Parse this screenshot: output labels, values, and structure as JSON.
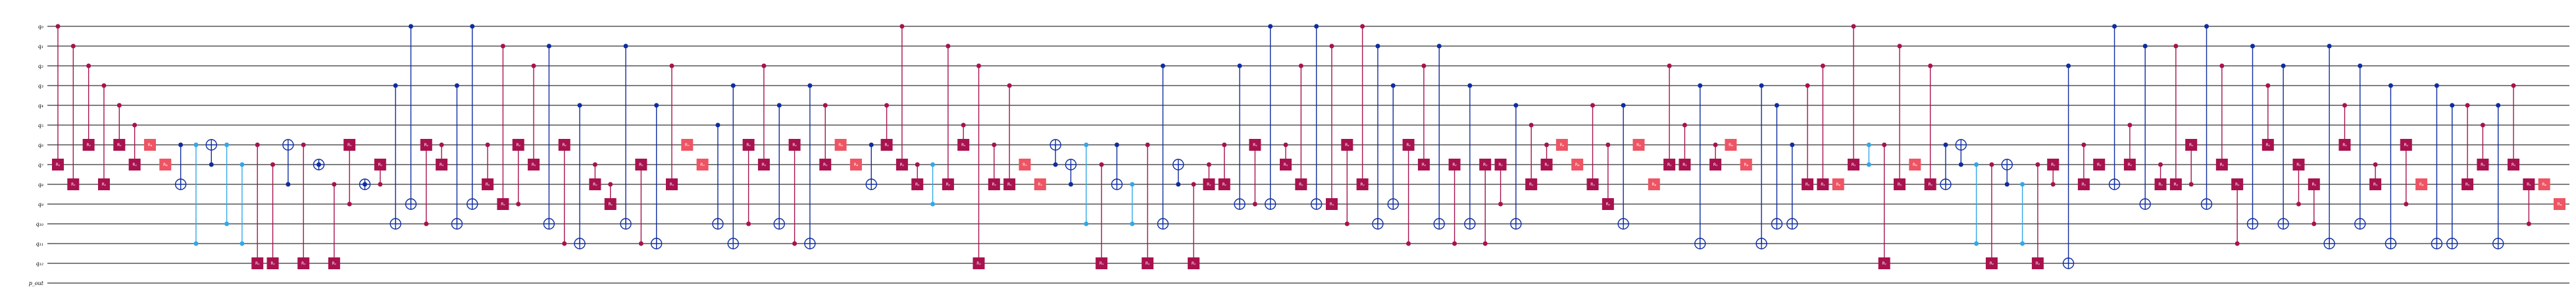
{
  "circuit": {
    "wires": [
      "q₀",
      "q₁",
      "q₂",
      "q₃",
      "q₄",
      "q₅",
      "q₆",
      "q₇",
      "q₈",
      "q₉",
      "q₁₀",
      "q₁₁",
      "q₁₂",
      "p_out"
    ],
    "gate_labels": {
      "ry": "Rᵧ",
      "rx": "Rₓ",
      "rz": "Rᵩ",
      "cry": "Rᵧ"
    },
    "colors": {
      "controlled_rotation": "#A8124E",
      "single_rotation": "#EE5464",
      "cnot": "#0F2CA0",
      "cz": "#31A8E8",
      "wire": "#000000"
    },
    "operations": [
      {
        "t": "cry",
        "c": 0,
        "g": 7
      },
      {
        "t": "cry",
        "c": 1,
        "g": 8
      },
      {
        "t": "cry",
        "c": 2,
        "g": 6
      },
      {
        "t": "cry",
        "c": 3,
        "g": 8
      },
      {
        "t": "cry",
        "c": 4,
        "g": 6
      },
      {
        "t": "cry",
        "c": 5,
        "g": 7
      },
      {
        "t": "rz",
        "g": 6
      },
      {
        "t": "rz",
        "g": 7
      },
      {
        "t": "cx",
        "c": 6,
        "g": 8
      },
      {
        "t": "cz",
        "a": 6,
        "b": 11
      },
      {
        "t": "cx",
        "c": 7,
        "g": 6
      },
      {
        "t": "cz",
        "a": 6,
        "b": 10
      },
      {
        "t": "cz",
        "a": 7,
        "b": 11
      },
      {
        "t": "cry",
        "c": 6,
        "g": 12
      },
      {
        "t": "cry",
        "c": 7,
        "g": 12
      },
      {
        "t": "cx",
        "c": 8,
        "g": 6
      },
      {
        "t": "cry",
        "c": 6,
        "g": 12
      },
      {
        "t": "cx",
        "c": 7,
        "g": 7
      },
      {
        "t": "cry",
        "c": 8,
        "g": 12
      },
      {
        "t": "cry",
        "c": 9,
        "g": 6
      },
      {
        "t": "cx",
        "c": 8,
        "g": 8
      },
      {
        "t": "cry",
        "c": 8,
        "g": 7
      },
      {
        "t": "cx",
        "c": 3,
        "g": 10
      },
      {
        "t": "cx",
        "c": 0,
        "g": 9
      },
      {
        "t": "cry",
        "c": 10,
        "g": 6
      },
      {
        "t": "cry",
        "c": 6,
        "g": 7
      },
      {
        "t": "cx",
        "c": 3,
        "g": 10
      },
      {
        "t": "cx",
        "c": 0,
        "g": 9
      },
      {
        "t": "cry",
        "c": 6,
        "g": 8
      },
      {
        "t": "cry",
        "c": 1,
        "g": 9
      },
      {
        "t": "cry",
        "c": 9,
        "g": 6
      },
      {
        "t": "cry",
        "c": 2,
        "g": 7
      },
      {
        "t": "cx",
        "c": 1,
        "g": 10
      },
      {
        "t": "cry",
        "c": 11,
        "g": 6
      },
      {
        "t": "cx",
        "c": 4,
        "g": 11
      },
      {
        "t": "cry",
        "c": 7,
        "g": 8
      },
      {
        "t": "cry",
        "c": 8,
        "g": 9
      },
      {
        "t": "cx",
        "c": 1,
        "g": 10
      },
      {
        "t": "cry",
        "c": 11,
        "g": 7
      },
      {
        "t": "cx",
        "c": 4,
        "g": 11
      },
      {
        "t": "cry",
        "c": 2,
        "g": 8
      },
      {
        "t": "rx",
        "g": 6
      },
      {
        "t": "rx",
        "g": 7
      },
      {
        "t": "cx",
        "c": 5,
        "g": 10
      },
      {
        "t": "cx",
        "c": 3,
        "g": 11
      },
      {
        "t": "cry",
        "c": 10,
        "g": 6
      },
      {
        "t": "cry",
        "c": 2,
        "g": 7
      },
      {
        "t": "cx",
        "c": 4,
        "g": 10
      },
      {
        "t": "cry",
        "c": 11,
        "g": 6
      },
      {
        "t": "cx",
        "c": 3,
        "g": 11
      },
      {
        "t": "cry",
        "c": 4,
        "g": 7
      },
      {
        "t": "rz",
        "g": 6
      },
      {
        "t": "rz",
        "g": 7
      },
      {
        "t": "cx",
        "c": 6,
        "g": 8
      },
      {
        "t": "cry",
        "c": 4,
        "g": 6
      },
      {
        "t": "cry",
        "c": 0,
        "g": 7
      },
      {
        "t": "cry",
        "c": 7,
        "g": 8
      },
      {
        "t": "cz",
        "a": 7,
        "b": 9
      },
      {
        "t": "cry",
        "c": 1,
        "g": 8
      },
      {
        "t": "cry",
        "c": 5,
        "g": 6
      },
      {
        "t": "cry",
        "c": 2,
        "g": 12
      },
      {
        "t": "cry",
        "c": 6,
        "g": 8
      },
      {
        "t": "cry",
        "c": 3,
        "g": 8
      },
      {
        "t": "rx",
        "g": 7
      },
      {
        "t": "rx",
        "g": 8
      },
      {
        "t": "cx",
        "c": 7,
        "g": 6
      },
      {
        "t": "cx",
        "c": 8,
        "g": 7
      },
      {
        "t": "cz",
        "a": 6,
        "b": 10
      },
      {
        "t": "cry",
        "c": 7,
        "g": 12
      },
      {
        "t": "cx",
        "c": 6,
        "g": 8
      },
      {
        "t": "cz",
        "a": 8,
        "b": 10
      },
      {
        "t": "cry",
        "c": 6,
        "g": 12
      },
      {
        "t": "cx",
        "c": 2,
        "g": 10
      },
      {
        "t": "cx",
        "c": 8,
        "g": 7
      },
      {
        "t": "cry",
        "c": 8,
        "g": 12
      },
      {
        "t": "cry",
        "c": 7,
        "g": 8
      },
      {
        "t": "cry",
        "c": 6,
        "g": 8
      },
      {
        "t": "cx",
        "c": 2,
        "g": 9
      },
      {
        "t": "cry",
        "c": 9,
        "g": 6
      },
      {
        "t": "cx",
        "c": 0,
        "g": 9
      },
      {
        "t": "cry",
        "c": 6,
        "g": 7
      },
      {
        "t": "cry",
        "c": 2,
        "g": 8
      },
      {
        "t": "cx",
        "c": 0,
        "g": 9
      },
      {
        "t": "cry",
        "c": 1,
        "g": 9
      },
      {
        "t": "cry",
        "c": 10,
        "g": 6
      },
      {
        "t": "cry",
        "c": 0,
        "g": 8
      },
      {
        "t": "cx",
        "c": 1,
        "g": 10
      },
      {
        "t": "cx",
        "c": 3,
        "g": 9
      },
      {
        "t": "cry",
        "c": 11,
        "g": 6
      },
      {
        "t": "cry",
        "c": 2,
        "g": 7
      },
      {
        "t": "cx",
        "c": 1,
        "g": 10
      },
      {
        "t": "cry",
        "c": 11,
        "g": 7
      },
      {
        "t": "cx",
        "c": 3,
        "g": 10
      },
      {
        "t": "cry",
        "c": 11,
        "g": 7
      },
      {
        "t": "cry",
        "c": 9,
        "g": 7
      },
      {
        "t": "cx",
        "c": 4,
        "g": 10
      },
      {
        "t": "cry",
        "c": 5,
        "g": 8
      },
      {
        "t": "cry",
        "c": 6,
        "g": 7
      },
      {
        "t": "rz",
        "g": 6
      },
      {
        "t": "rz",
        "g": 7
      },
      {
        "t": "cry",
        "c": 4,
        "g": 8
      },
      {
        "t": "cry",
        "c": 6,
        "g": 9
      },
      {
        "t": "cx",
        "c": 4,
        "g": 10
      },
      {
        "t": "rz",
        "g": 6
      },
      {
        "t": "rz",
        "g": 8
      },
      {
        "t": "cry",
        "c": 2,
        "g": 7
      },
      {
        "t": "cry",
        "c": 5,
        "g": 7
      },
      {
        "t": "cx",
        "c": 3,
        "g": 11
      },
      {
        "t": "cry",
        "c": 6,
        "g": 7
      },
      {
        "t": "rz",
        "g": 6
      },
      {
        "t": "rz",
        "g": 7
      },
      {
        "t": "cx",
        "c": 3,
        "g": 11
      },
      {
        "t": "cx",
        "c": 4,
        "g": 10
      },
      {
        "t": "cx",
        "c": 6,
        "g": 10
      },
      {
        "t": "cry",
        "c": 3,
        "g": 8
      },
      {
        "t": "cry",
        "c": 2,
        "g": 8
      },
      {
        "t": "rz",
        "g": 8
      },
      {
        "t": "cry",
        "c": 0,
        "g": 7
      },
      {
        "t": "cz",
        "a": 6,
        "b": 7
      },
      {
        "t": "cry",
        "c": 6,
        "g": 12
      },
      {
        "t": "cry",
        "c": 1,
        "g": 8
      },
      {
        "t": "rz",
        "g": 7
      },
      {
        "t": "cry",
        "c": 2,
        "g": 8
      },
      {
        "t": "cx",
        "c": 6,
        "g": 8
      },
      {
        "t": "cx",
        "c": 7,
        "g": 6
      },
      {
        "t": "cz",
        "a": 7,
        "b": 11
      },
      {
        "t": "cry",
        "c": 7,
        "g": 12
      },
      {
        "t": "cx",
        "c": 8,
        "g": 7
      },
      {
        "t": "cz",
        "a": 8,
        "b": 11
      },
      {
        "t": "cry",
        "c": 7,
        "g": 12
      },
      {
        "t": "cry",
        "c": 8,
        "g": 7
      },
      {
        "t": "cx",
        "c": 2,
        "g": 12
      },
      {
        "t": "cry",
        "c": 6,
        "g": 8
      },
      {
        "t": "cry",
        "c": 7,
        "g": 7
      },
      {
        "t": "cx",
        "c": 0,
        "g": 8
      },
      {
        "t": "cry",
        "c": 5,
        "g": 7
      },
      {
        "t": "cx",
        "c": 1,
        "g": 9
      },
      {
        "t": "cry",
        "c": 7,
        "g": 8
      },
      {
        "t": "cry",
        "c": 1,
        "g": 8
      },
      {
        "t": "cry",
        "c": 8,
        "g": 6
      },
      {
        "t": "cx",
        "c": 0,
        "g": 9
      },
      {
        "t": "cry",
        "c": 2,
        "g": 7
      },
      {
        "t": "cry",
        "c": 11,
        "g": 8
      },
      {
        "t": "cx",
        "c": 1,
        "g": 10
      },
      {
        "t": "cry",
        "c": 3,
        "g": 6
      },
      {
        "t": "cx",
        "c": 2,
        "g": 10
      },
      {
        "t": "cry",
        "c": 9,
        "g": 7
      },
      {
        "t": "cry",
        "c": 10,
        "g": 8
      },
      {
        "t": "cx",
        "c": 1,
        "g": 11
      },
      {
        "t": "cry",
        "c": 4,
        "g": 6
      },
      {
        "t": "cx",
        "c": 2,
        "g": 10
      },
      {
        "t": "cry",
        "c": 7,
        "g": 8
      },
      {
        "t": "cx",
        "c": 3,
        "g": 11
      },
      {
        "t": "cry",
        "c": 9,
        "g": 6
      },
      {
        "t": "rz",
        "g": 8
      },
      {
        "t": "cx",
        "c": 3,
        "g": 11
      },
      {
        "t": "cx",
        "c": 4,
        "g": 11
      },
      {
        "t": "cry",
        "c": 4,
        "g": 8
      },
      {
        "t": "cry",
        "c": 5,
        "g": 7
      },
      {
        "t": "cx",
        "c": 4,
        "g": 11
      },
      {
        "t": "cry",
        "c": 3,
        "g": 7
      },
      {
        "t": "cry",
        "c": 10,
        "g": 8
      },
      {
        "t": "rz",
        "g": 8
      },
      {
        "t": "rz",
        "g": 9
      }
    ]
  }
}
